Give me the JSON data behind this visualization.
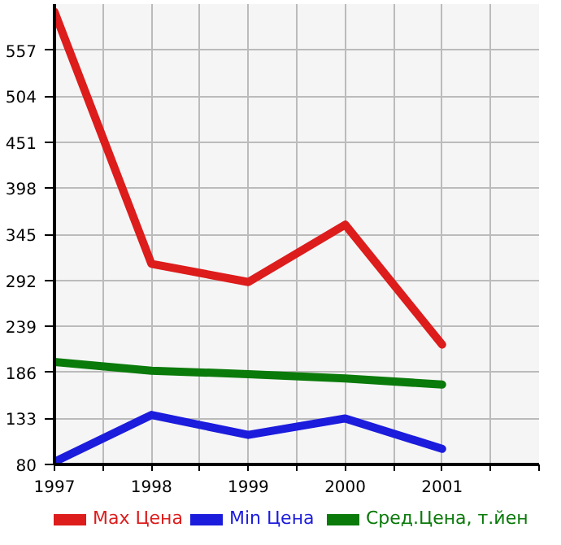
{
  "chart_data": {
    "type": "line",
    "x": [
      1997,
      1998,
      1999,
      2000,
      2001
    ],
    "series": [
      {
        "name": "Max Цена",
        "color": "#dd1c1c",
        "values": [
          601,
          311,
          290,
          356,
          218
        ]
      },
      {
        "name": "Min Цена",
        "color": "#1c1cdd",
        "values": [
          83,
          137,
          114,
          133,
          98
        ]
      },
      {
        "name": "Сред.Цена, т.йен",
        "color": "#0a7a0a",
        "values": [
          198,
          188,
          184,
          179,
          172
        ]
      }
    ],
    "xlim": [
      1997,
      2002
    ],
    "xticks": [
      1997,
      {
        "value": 1997.5,
        "label": null
      },
      1998,
      {
        "value": 1998.5,
        "label": null
      },
      1999,
      {
        "value": 1999.5,
        "label": null
      },
      2000,
      {
        "value": 2000.5,
        "label": null
      },
      2001,
      {
        "value": 2001.5,
        "label": null
      },
      {
        "value": 2002,
        "label": null
      }
    ],
    "ylim": [
      80,
      610
    ],
    "yticks": [
      80,
      133,
      186,
      239,
      292,
      345,
      398,
      451,
      504,
      557
    ],
    "grid": true,
    "legend": "bottom",
    "marker": "none",
    "line_style": "solid"
  }
}
